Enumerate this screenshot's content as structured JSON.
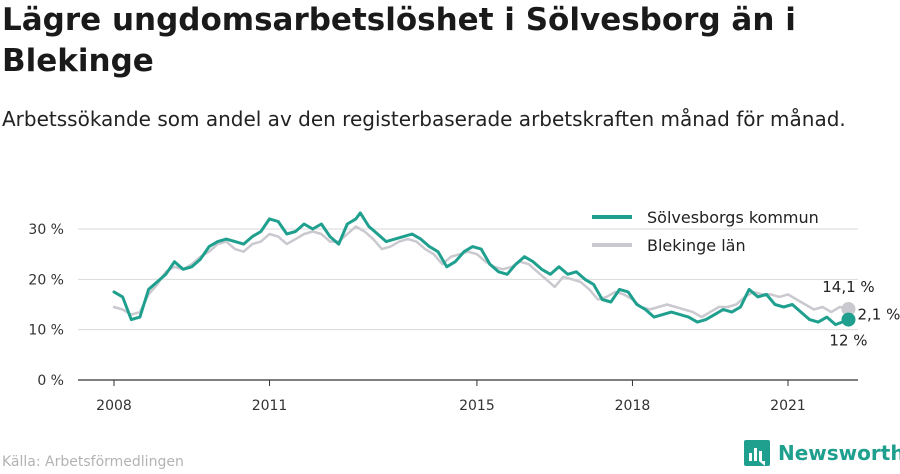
{
  "page": {
    "title": "Lägre ungdomsarbetslöshet i Sölvesborg än i Blekinge",
    "subtitle": "Arbetssökande som andel av den registerbaserade arbetskraften månad för månad.",
    "source": "Källa: Arbetsförmedlingen",
    "brand": "Newsworthy",
    "brand_icon": "bar-chart-logo-icon"
  },
  "chart_data": {
    "type": "line",
    "x_start": "2008-01",
    "x_end": "2022-03",
    "x_ticks": [
      {
        "year": 2008,
        "label": "2008"
      },
      {
        "year": 2011,
        "label": "2011"
      },
      {
        "year": 2015,
        "label": "2015"
      },
      {
        "year": 2018,
        "label": "2018"
      },
      {
        "year": 2021,
        "label": "2021"
      }
    ],
    "y_ticks": [
      {
        "value": 0,
        "label": "0 %"
      },
      {
        "value": 10,
        "label": "10 %"
      },
      {
        "value": 20,
        "label": "20 %"
      },
      {
        "value": 30,
        "label": "30 %"
      }
    ],
    "ylim": [
      0,
      32
    ],
    "grid": true,
    "legend_position": "top-right",
    "series": [
      {
        "name": "Sölvesborgs kommun",
        "color": "#1fa08f",
        "points": [
          [
            "2008-01",
            17.5
          ],
          [
            "2008-03",
            16.5
          ],
          [
            "2008-05",
            12
          ],
          [
            "2008-07",
            12.5
          ],
          [
            "2008-09",
            18
          ],
          [
            "2008-11",
            19.5
          ],
          [
            "2009-01",
            21
          ],
          [
            "2009-03",
            23.5
          ],
          [
            "2009-05",
            22
          ],
          [
            "2009-07",
            22.5
          ],
          [
            "2009-09",
            24
          ],
          [
            "2009-11",
            26.5
          ],
          [
            "2010-01",
            27.5
          ],
          [
            "2010-03",
            28
          ],
          [
            "2010-05",
            27.5
          ],
          [
            "2010-07",
            27
          ],
          [
            "2010-09",
            28.5
          ],
          [
            "2010-11",
            29.5
          ],
          [
            "2011-01",
            32
          ],
          [
            "2011-03",
            31.5
          ],
          [
            "2011-05",
            29
          ],
          [
            "2011-07",
            29.5
          ],
          [
            "2011-09",
            31
          ],
          [
            "2011-11",
            30
          ],
          [
            "2012-01",
            31
          ],
          [
            "2012-03",
            28.5
          ],
          [
            "2012-05",
            27
          ],
          [
            "2012-07",
            31
          ],
          [
            "2012-09",
            32
          ],
          [
            "2012-10",
            33.2
          ],
          [
            "2012-12",
            30.5
          ],
          [
            "2013-02",
            29
          ],
          [
            "2013-04",
            27.5
          ],
          [
            "2013-06",
            28
          ],
          [
            "2013-08",
            28.5
          ],
          [
            "2013-10",
            29
          ],
          [
            "2013-12",
            28
          ],
          [
            "2014-02",
            26.5
          ],
          [
            "2014-04",
            25.5
          ],
          [
            "2014-06",
            22.5
          ],
          [
            "2014-08",
            23.5
          ],
          [
            "2014-10",
            25.5
          ],
          [
            "2014-12",
            26.5
          ],
          [
            "2015-02",
            26
          ],
          [
            "2015-04",
            23
          ],
          [
            "2015-06",
            21.5
          ],
          [
            "2015-08",
            21
          ],
          [
            "2015-10",
            23
          ],
          [
            "2015-12",
            24.5
          ],
          [
            "2016-02",
            23.5
          ],
          [
            "2016-04",
            22
          ],
          [
            "2016-06",
            21
          ],
          [
            "2016-08",
            22.5
          ],
          [
            "2016-10",
            21
          ],
          [
            "2016-12",
            21.5
          ],
          [
            "2017-02",
            20
          ],
          [
            "2017-04",
            19
          ],
          [
            "2017-06",
            16
          ],
          [
            "2017-08",
            15.5
          ],
          [
            "2017-10",
            18
          ],
          [
            "2017-12",
            17.5
          ],
          [
            "2018-02",
            15
          ],
          [
            "2018-04",
            14
          ],
          [
            "2018-06",
            12.5
          ],
          [
            "2018-08",
            13
          ],
          [
            "2018-10",
            13.5
          ],
          [
            "2018-12",
            13
          ],
          [
            "2019-02",
            12.5
          ],
          [
            "2019-04",
            11.5
          ],
          [
            "2019-06",
            12
          ],
          [
            "2019-08",
            13
          ],
          [
            "2019-10",
            14
          ],
          [
            "2019-12",
            13.5
          ],
          [
            "2020-02",
            14.5
          ],
          [
            "2020-04",
            18
          ],
          [
            "2020-06",
            16.5
          ],
          [
            "2020-08",
            17
          ],
          [
            "2020-10",
            15
          ],
          [
            "2020-12",
            14.5
          ],
          [
            "2021-02",
            15
          ],
          [
            "2021-04",
            13.5
          ],
          [
            "2021-06",
            12
          ],
          [
            "2021-08",
            11.5
          ],
          [
            "2021-10",
            12.5
          ],
          [
            "2021-12",
            11
          ],
          [
            "2022-03",
            12
          ]
        ]
      },
      {
        "name": "Blekinge län",
        "color": "#c9c9cf",
        "points": [
          [
            "2008-01",
            14.5
          ],
          [
            "2008-03",
            14
          ],
          [
            "2008-05",
            13
          ],
          [
            "2008-07",
            13.5
          ],
          [
            "2008-09",
            17
          ],
          [
            "2008-11",
            19
          ],
          [
            "2009-01",
            21.5
          ],
          [
            "2009-03",
            22.5
          ],
          [
            "2009-05",
            22
          ],
          [
            "2009-07",
            23
          ],
          [
            "2009-09",
            24.5
          ],
          [
            "2009-11",
            25.5
          ],
          [
            "2010-01",
            27
          ],
          [
            "2010-03",
            27.5
          ],
          [
            "2010-05",
            26
          ],
          [
            "2010-07",
            25.5
          ],
          [
            "2010-09",
            27
          ],
          [
            "2010-11",
            27.5
          ],
          [
            "2011-01",
            29
          ],
          [
            "2011-03",
            28.5
          ],
          [
            "2011-05",
            27
          ],
          [
            "2011-07",
            28
          ],
          [
            "2011-09",
            29
          ],
          [
            "2011-11",
            29.5
          ],
          [
            "2012-01",
            29
          ],
          [
            "2012-03",
            27.5
          ],
          [
            "2012-05",
            27.5
          ],
          [
            "2012-07",
            29
          ],
          [
            "2012-09",
            30.5
          ],
          [
            "2012-11",
            29.5
          ],
          [
            "2013-01",
            28
          ],
          [
            "2013-03",
            26
          ],
          [
            "2013-05",
            26.5
          ],
          [
            "2013-07",
            27.5
          ],
          [
            "2013-09",
            28
          ],
          [
            "2013-11",
            27.5
          ],
          [
            "2014-01",
            26
          ],
          [
            "2014-03",
            25
          ],
          [
            "2014-05",
            23
          ],
          [
            "2014-07",
            24.5
          ],
          [
            "2014-09",
            25
          ],
          [
            "2014-11",
            25.5
          ],
          [
            "2015-01",
            25
          ],
          [
            "2015-03",
            23.5
          ],
          [
            "2015-05",
            22.5
          ],
          [
            "2015-07",
            22
          ],
          [
            "2015-09",
            22.5
          ],
          [
            "2015-11",
            23.5
          ],
          [
            "2016-01",
            23
          ],
          [
            "2016-03",
            21.5
          ],
          [
            "2016-05",
            20
          ],
          [
            "2016-07",
            18.5
          ],
          [
            "2016-09",
            20.5
          ],
          [
            "2016-11",
            20
          ],
          [
            "2017-01",
            19.5
          ],
          [
            "2017-03",
            18
          ],
          [
            "2017-05",
            16
          ],
          [
            "2017-07",
            16.5
          ],
          [
            "2017-09",
            17.5
          ],
          [
            "2017-11",
            17
          ],
          [
            "2018-01",
            16
          ],
          [
            "2018-03",
            14.5
          ],
          [
            "2018-05",
            14
          ],
          [
            "2018-07",
            14.5
          ],
          [
            "2018-09",
            15
          ],
          [
            "2018-11",
            14.5
          ],
          [
            "2019-01",
            14
          ],
          [
            "2019-03",
            13.5
          ],
          [
            "2019-05",
            12.5
          ],
          [
            "2019-07",
            13.5
          ],
          [
            "2019-09",
            14.5
          ],
          [
            "2019-11",
            14.5
          ],
          [
            "2020-01",
            15
          ],
          [
            "2020-03",
            16.5
          ],
          [
            "2020-05",
            17.5
          ],
          [
            "2020-07",
            17
          ],
          [
            "2020-09",
            17
          ],
          [
            "2020-11",
            16.5
          ],
          [
            "2021-01",
            17
          ],
          [
            "2021-03",
            16
          ],
          [
            "2021-05",
            15
          ],
          [
            "2021-07",
            14
          ],
          [
            "2021-09",
            14.5
          ],
          [
            "2021-11",
            13.5
          ],
          [
            "2022-01",
            14.5
          ],
          [
            "2022-03",
            14.1
          ]
        ]
      }
    ],
    "annotations": [
      {
        "series": 1,
        "label": "14,1 %",
        "value": 14.1,
        "date": "2022-03"
      },
      {
        "series": 0,
        "label": "12 %",
        "value": 12,
        "date": "2022-03"
      },
      {
        "label": "2,1 %",
        "note": "difference"
      }
    ]
  }
}
